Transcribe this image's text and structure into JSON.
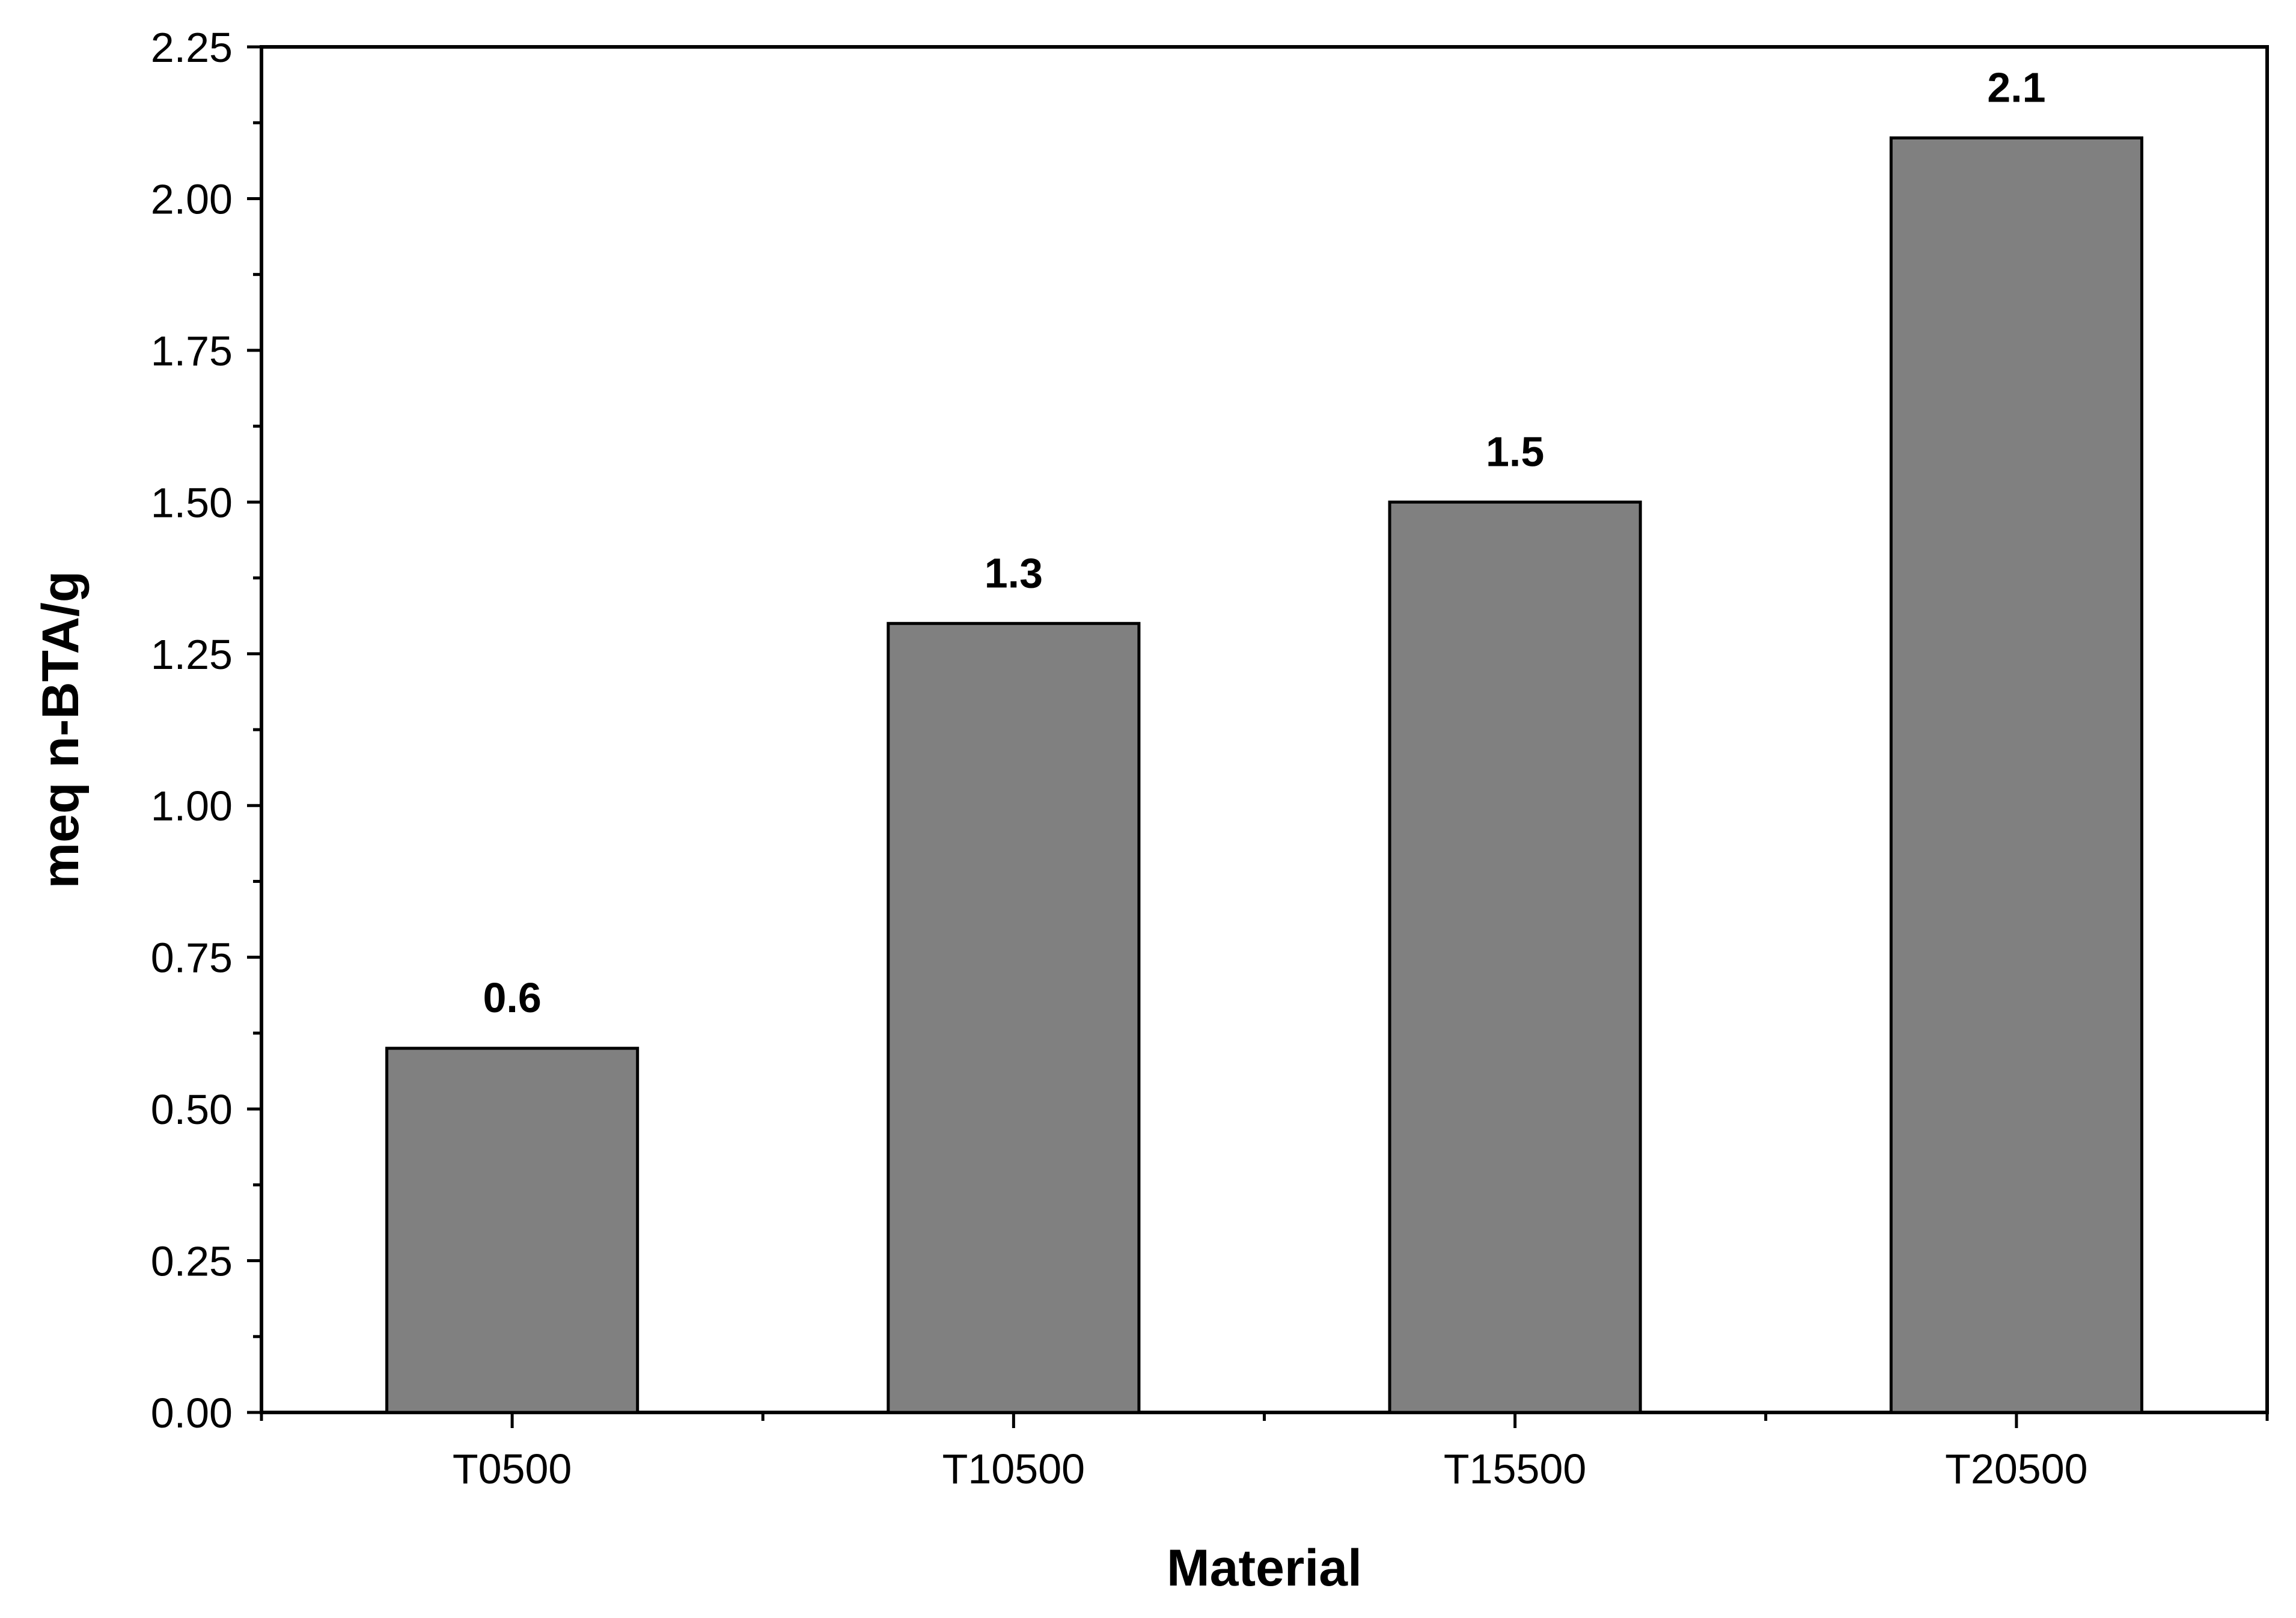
{
  "chart_data": {
    "type": "bar",
    "title": "",
    "xlabel": "Material",
    "ylabel": "meq n-BTA/g",
    "categories": [
      "T0500",
      "T10500",
      "T15500",
      "T20500"
    ],
    "values": [
      0.6,
      1.3,
      1.5,
      2.1
    ],
    "data_labels": [
      "0.6",
      "1.3",
      "1.5",
      "2.1"
    ],
    "ylim": [
      0,
      2.25
    ],
    "y_ticks": [
      "0.00",
      "0.25",
      "0.50",
      "0.75",
      "1.00",
      "1.25",
      "1.50",
      "1.75",
      "2.00",
      "2.25"
    ],
    "grid": false,
    "legend": "none",
    "bar_color": "#808080"
  }
}
